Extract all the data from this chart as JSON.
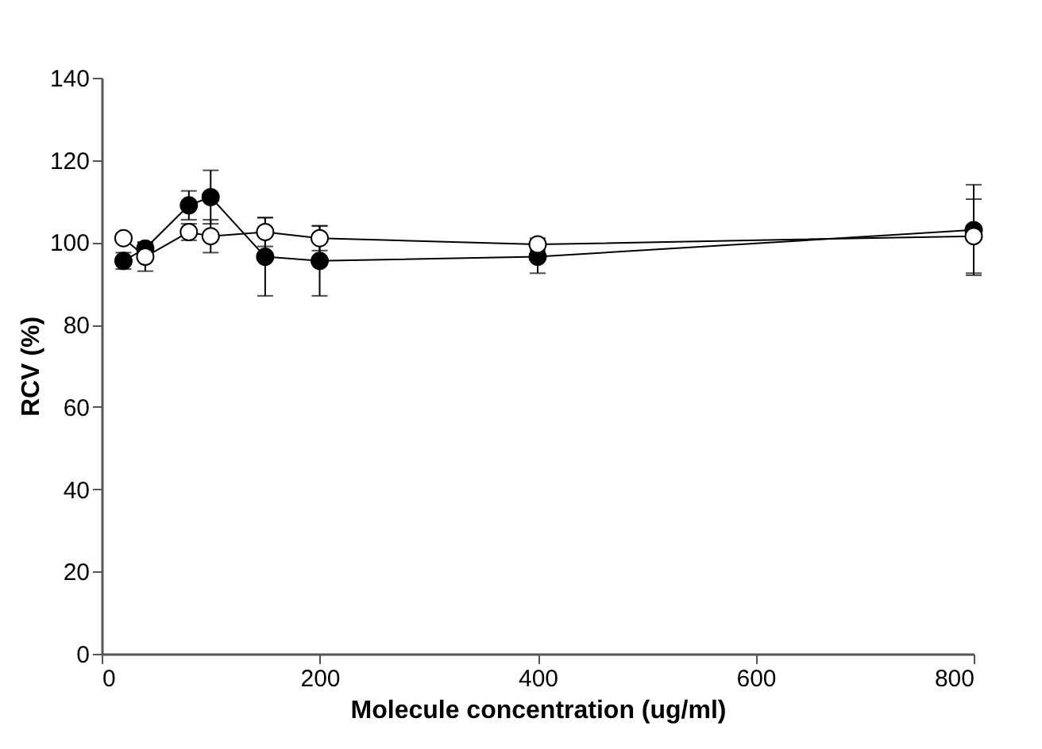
{
  "chart_data": {
    "type": "line",
    "xlabel": "Molecule concentration (ug/ml)",
    "ylabel": "RCV (%)",
    "x": [
      20,
      40,
      80,
      100,
      150,
      200,
      400,
      800
    ],
    "series": [
      {
        "color": "#000000",
        "values": [
          95.5,
          98.5,
          109,
          111,
          96.5,
          95.5,
          96.5,
          103
        ],
        "errors": [
          2,
          1.5,
          3.5,
          6.5,
          9.5,
          8.5,
          4,
          11
        ]
      },
      {
        "color": "#ffffff",
        "values": [
          101,
          96.5,
          102.5,
          101.5,
          102.5,
          101,
          99.5,
          101.5
        ],
        "errors": [
          1,
          3.5,
          2,
          4,
          3.5,
          3,
          1.5,
          9
        ]
      }
    ],
    "xlim": [
      0,
      800
    ],
    "xticks": [
      0,
      200,
      400,
      600,
      800
    ],
    "ylim": [
      0,
      140
    ],
    "yticks": [
      0,
      20,
      40,
      60,
      80,
      100,
      120,
      140
    ],
    "marker": "circle",
    "line_style": "solid",
    "grid": false
  }
}
